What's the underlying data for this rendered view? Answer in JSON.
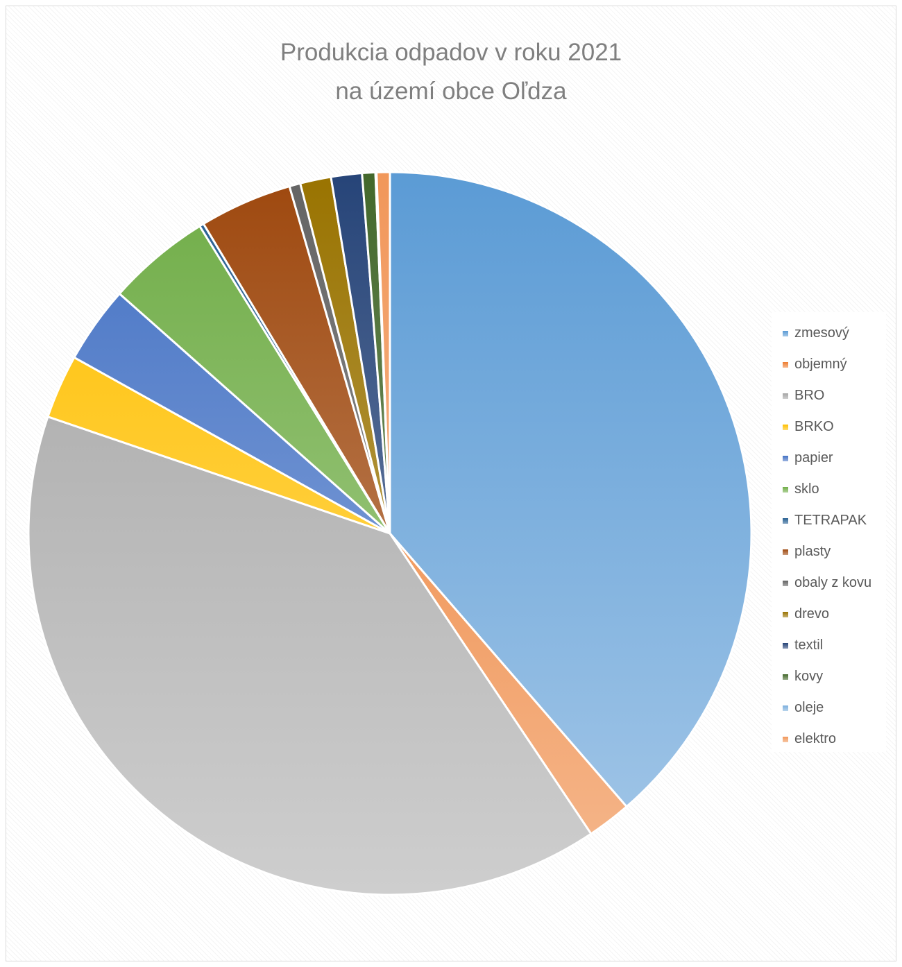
{
  "chart_data": {
    "type": "pie",
    "title": [
      "Produkcia odpadov v roku 2021",
      "na území obce Oľdza"
    ],
    "legend_position": "right",
    "categories": [
      "zmesový",
      "objemný",
      "BRO",
      "BRKO",
      "papier",
      "sklo",
      "TETRAPAK",
      "plasty",
      "obaly z kovu",
      "drevo",
      "textil",
      "kovy",
      "oleje",
      "elektro"
    ],
    "values": [
      39.2,
      2.0,
      40.2,
      2.9,
      3.5,
      4.7,
      0.2,
      4.2,
      0.5,
      1.4,
      1.4,
      0.6,
      0.05,
      0.6
    ],
    "colors": [
      "#5b9bd5",
      "#ed7d31",
      "#a5a5a5",
      "#ffc000",
      "#4472c4",
      "#70ad47",
      "#255e91",
      "#9e480e",
      "#636363",
      "#997300",
      "#264478",
      "#43682b",
      "#7cafdd",
      "#f1975a"
    ]
  }
}
